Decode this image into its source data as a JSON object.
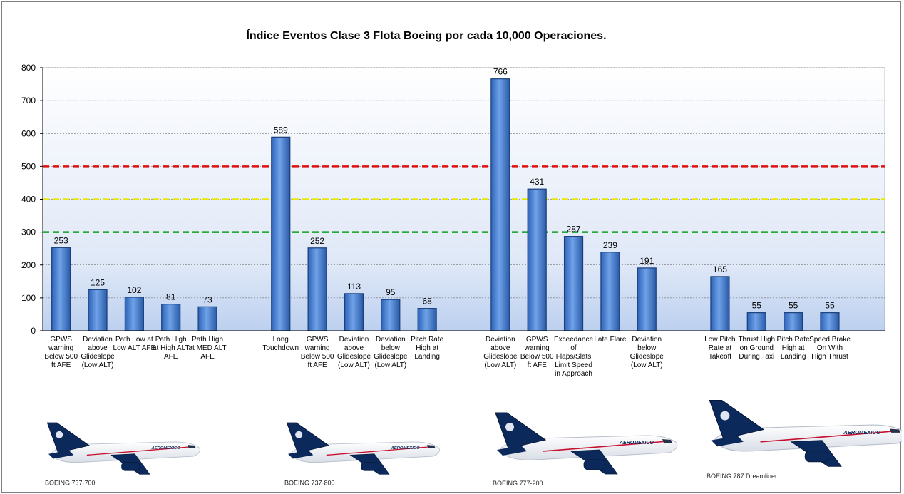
{
  "chart_data": {
    "type": "bar",
    "title": "Índice Eventos Clase 3 Flota Boeing por cada 10,000 Operaciones.",
    "xlabel": "",
    "ylabel": "",
    "ylim": [
      0,
      800
    ],
    "yticks": [
      0,
      100,
      200,
      300,
      400,
      500,
      600,
      700,
      800
    ],
    "grid": true,
    "reference_lines": [
      {
        "value": 500,
        "color": "#e01010"
      },
      {
        "value": 400,
        "color": "#e8e800"
      },
      {
        "value": 300,
        "color": "#10a020"
      }
    ],
    "groups": [
      {
        "aircraft": "BOEING 737-700",
        "categories": [
          "GPWS warning Below 500 ft AFE",
          "Deviation above Glideslope (Low ALT)",
          "Path Low at Low ALT AFE",
          "Path High at High ALT AFE",
          "Path High at MED ALT AFE"
        ],
        "values": [
          253,
          125,
          102,
          81,
          73
        ]
      },
      {
        "aircraft": "BOEING 737-800",
        "categories": [
          "Long Touchdown",
          "GPWS warning Below 500 ft AFE",
          "Deviation above Glideslope (Low ALT)",
          "Deviation below Glideslope (Low ALT)",
          "Pitch Rate High at Landing"
        ],
        "values": [
          589,
          252,
          113,
          95,
          68
        ]
      },
      {
        "aircraft": "BOEING 777-200",
        "categories": [
          "Deviation above Glideslope (Low ALT)",
          "GPWS warning Below 500 ft AFE",
          "Exceedance of Flaps/Slats Limit Speed in Approach",
          "Late Flare",
          "Deviation below Glideslope (Low ALT)"
        ],
        "values": [
          766,
          431,
          287,
          239,
          191
        ]
      },
      {
        "aircraft": "BOEING 787 Dreamliner",
        "categories": [
          "Low Pitch Rate at Takeoff",
          "Thrust High on Ground During Taxi",
          "Pitch Rate High at Landing",
          "Speed Brake On With High Thrust"
        ],
        "values": [
          165,
          55,
          55,
          55
        ]
      }
    ],
    "colors": {
      "bar": "#4f86d6",
      "bar_dark": "#1f4f9c",
      "plane_tail": "#0b2a5b",
      "livery_red": "#c8102e"
    }
  }
}
